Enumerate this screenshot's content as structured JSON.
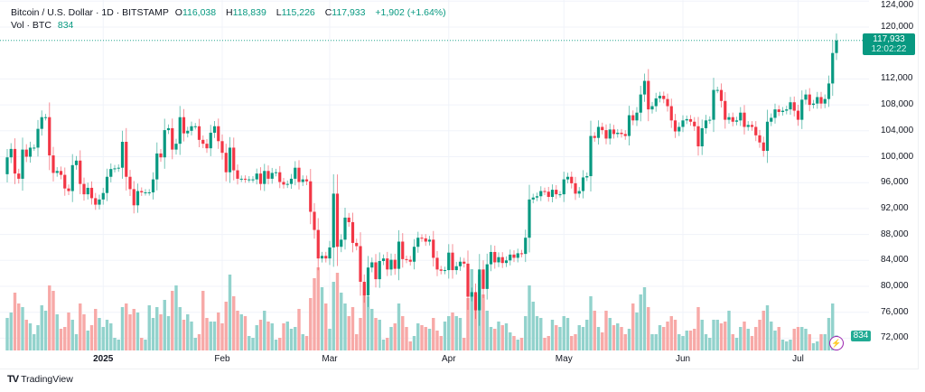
{
  "header": {
    "symbol": "Bitcoin / U.S. Dollar · 1D · BITSTAMP",
    "open_label": "O",
    "open": "116,038",
    "high_label": "H",
    "high": "118,839",
    "low_label": "L",
    "low": "115,226",
    "close_label": "C",
    "close": "117,933",
    "change": "+1,902 (+1.64%)",
    "vol_label": "Vol · BTC",
    "vol": "834"
  },
  "price_tag": {
    "price": "117,933",
    "countdown": "12:02:22"
  },
  "volume_tag": "834",
  "footer": {
    "brand": "TradingView"
  },
  "colors": {
    "up": "#089981",
    "down": "#f23645",
    "vol_up": "#92d2cc",
    "vol_down": "#f7a9a7",
    "grid": "#f0f3fa"
  },
  "chart_data": {
    "type": "candlestick",
    "interval": "1D",
    "first_date": "2024-12-07",
    "last_date": "2025-07-11",
    "y_unit": "USD (thousands)",
    "ylim": [
      71,
      124.5
    ],
    "y_ticks": [
      "124,000",
      "120,000",
      "112,000",
      "108,000",
      "104,000",
      "100,000",
      "96,000",
      "92,000",
      "88,000",
      "84,000",
      "80,000",
      "76,000",
      "72,000"
    ],
    "y_tick_values": [
      124,
      120,
      112,
      108,
      104,
      100,
      96,
      92,
      88,
      84,
      80,
      76,
      72
    ],
    "x_ticks": [
      {
        "label": "2025",
        "date": "2025-01-01",
        "bold": true
      },
      {
        "label": "Feb",
        "date": "2025-02-01"
      },
      {
        "label": "Mar",
        "date": "2025-03-01"
      },
      {
        "label": "Apr",
        "date": "2025-04-01"
      },
      {
        "label": "May",
        "date": "2025-05-01"
      },
      {
        "label": "Jun",
        "date": "2025-06-01"
      },
      {
        "label": "Jul",
        "date": "2025-07-01"
      }
    ],
    "grid": true,
    "first_open": 97.3,
    "close": [
      99.9,
      101.2,
      97.4,
      96.6,
      101.1,
      100.0,
      101.4,
      101.4,
      104.3,
      106.1,
      106.1,
      100.2,
      97.5,
      97.8,
      97.2,
      95.1,
      94.7,
      98.7,
      99.4,
      95.8,
      94.2,
      95.2,
      93.6,
      92.6,
      93.4,
      94.4,
      96.9,
      98.1,
      98.2,
      98.3,
      102.3,
      96.9,
      95.0,
      92.5,
      94.7,
      94.5,
      94.5,
      94.5,
      96.5,
      100.5,
      99.9,
      104.1,
      104.4,
      101.1,
      102.0,
      106.1,
      103.6,
      104.0,
      104.7,
      104.7,
      102.6,
      102.0,
      101.3,
      103.7,
      104.7,
      102.4,
      100.6,
      97.6,
      101.4,
      97.9,
      96.6,
      96.6,
      96.5,
      96.5,
      96.5,
      97.4,
      95.8,
      97.8,
      96.6,
      97.5,
      97.6,
      96.1,
      95.7,
      95.8,
      96.6,
      98.3,
      96.1,
      96.5,
      96.2,
      91.5,
      88.7,
      84.3,
      84.7,
      84.3,
      86.0,
      94.3,
      86.1,
      87.2,
      90.6,
      89.9,
      86.7,
      86.2,
      80.7,
      78.6,
      82.9,
      83.7,
      81.1,
      83.9,
      84.3,
      82.6,
      84.1,
      82.7,
      86.9,
      84.2,
      84.1,
      83.8,
      86.1,
      87.5,
      87.4,
      86.9,
      87.2,
      84.4,
      82.6,
      82.4,
      82.5,
      85.2,
      82.5,
      83.1,
      83.8,
      83.5,
      78.4,
      79.1,
      76.3,
      82.6,
      79.6,
      83.4,
      85.3,
      83.7,
      84.5,
      83.6,
      84.0,
      84.9,
      84.4,
      85.1,
      85.0,
      87.5,
      93.4,
      93.7,
      93.9,
      94.7,
      94.6,
      93.8,
      94.9,
      94.2,
      94.2,
      96.5,
      96.9,
      95.9,
      94.3,
      94.7,
      96.8,
      97.0,
      103.2,
      102.9,
      104.6,
      104.1,
      102.8,
      104.2,
      103.5,
      103.7,
      103.5,
      103.2,
      106.4,
      105.6,
      106.8,
      109.6,
      111.7,
      107.3,
      107.8,
      109.0,
      109.4,
      108.9,
      107.8,
      105.6,
      103.9,
      104.6,
      105.6,
      105.8,
      105.4,
      104.7,
      101.6,
      104.4,
      105.6,
      105.7,
      110.3,
      110.3,
      108.6,
      105.7,
      106.1,
      105.4,
      105.6,
      106.8,
      104.6,
      104.9,
      104.6,
      103.3,
      102.2,
      100.9,
      105.4,
      106.0,
      107.3,
      106.9,
      107.1,
      107.3,
      108.4,
      107.1,
      105.7,
      108.8,
      109.6,
      108.0,
      108.2,
      109.2,
      108.2,
      108.9,
      111.3,
      116.0,
      117.933
    ],
    "volume_btc": [
      1800,
      2100,
      3200,
      2600,
      2400,
      1700,
      1500,
      900,
      1400,
      2500,
      2200,
      3600,
      3300,
      2000,
      1200,
      1300,
      2100,
      1700,
      900,
      2600,
      2000,
      1100,
      1400,
      2300,
      1800,
      1300,
      1700,
      1500,
      700,
      600,
      2400,
      2600,
      2000,
      2300,
      2100,
      700,
      600,
      2500,
      1800,
      2400,
      2000,
      2800,
      1900,
      3300,
      3600,
      2400,
      1700,
      2000,
      1600,
      700,
      900,
      3300,
      1800,
      1600,
      1600,
      2100,
      1500,
      2700,
      4200,
      3000,
      2200,
      2000,
      1900,
      800,
      700,
      1400,
      1700,
      2200,
      1600,
      1500,
      600,
      700,
      1500,
      1600,
      1200,
      1300,
      2300,
      900,
      800,
      2900,
      4000,
      4600,
      3500,
      2600,
      1200,
      3800,
      4300,
      3200,
      2600,
      1900,
      2400,
      900,
      1800,
      3700,
      3000,
      2300,
      1800,
      1700,
      600,
      700,
      1300,
      1500,
      2600,
      1900,
      1300,
      500,
      800,
      1500,
      1400,
      1300,
      1200,
      1800,
      1100,
      800,
      1600,
      1900,
      2100,
      1900,
      1800,
      700,
      2900,
      4500,
      3100,
      4200,
      3100,
      2200,
      1300,
      1200,
      1600,
      1400,
      1500,
      1000,
      800,
      600,
      700,
      1900,
      3600,
      2700,
      1900,
      1800,
      700,
      800,
      1700,
      1400,
      1300,
      1900,
      1800,
      800,
      900,
      1400,
      1300,
      1700,
      3000,
      2200,
      1300,
      1000,
      2200,
      1800,
      1400,
      1500,
      1300,
      900,
      1200,
      2600,
      2100,
      3100,
      3500,
      2400,
      900,
      900,
      1400,
      1300,
      1600,
      1900,
      1700,
      900,
      800,
      1100,
      1100,
      1200,
      2400,
      1700,
      900,
      700,
      1700,
      1700,
      1500,
      1600,
      2200,
      900,
      700,
      1300,
      1600,
      1200,
      800,
      1300,
      1700,
      2200,
      2500,
      1600,
      1100,
      1300,
      600,
      500,
      600,
      1200,
      1300,
      1300,
      1200,
      900,
      400,
      500,
      900,
      900,
      1800,
      2600,
      834
    ],
    "last_price": 117.933
  }
}
